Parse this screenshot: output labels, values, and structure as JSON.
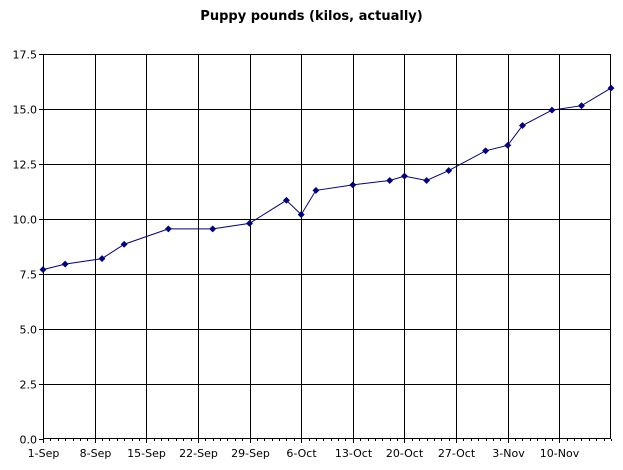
{
  "chart_data": {
    "type": "line",
    "title": "Puppy pounds (kilos, actually)",
    "xlabel": "",
    "ylabel": "",
    "x_tick_labels": [
      "1-Sep",
      "8-Sep",
      "15-Sep",
      "22-Sep",
      "29-Sep",
      "6-Oct",
      "13-Oct",
      "20-Oct",
      "27-Oct",
      "3-Nov",
      "10-Nov"
    ],
    "y_tick_labels": [
      "0.0",
      "2.5",
      "5.0",
      "7.5",
      "10.0",
      "12.5",
      "15.0",
      "17.5"
    ],
    "ylim": [
      0,
      17.5
    ],
    "xlim": [
      "2005-09-01",
      "2005-11-17"
    ],
    "grid": true,
    "legend": "none",
    "series": [
      {
        "color": "#000080",
        "marker": "diamond",
        "points": [
          {
            "x": "2005-09-01",
            "y": 7.7
          },
          {
            "x": "2005-09-04",
            "y": 7.95
          },
          {
            "x": "2005-09-09",
            "y": 8.2
          },
          {
            "x": "2005-09-12",
            "y": 8.85
          },
          {
            "x": "2005-09-18",
            "y": 9.55
          },
          {
            "x": "2005-09-24",
            "y": 9.55
          },
          {
            "x": "2005-09-29",
            "y": 9.8
          },
          {
            "x": "2005-10-04",
            "y": 10.85
          },
          {
            "x": "2005-10-06",
            "y": 10.2
          },
          {
            "x": "2005-10-08",
            "y": 11.3
          },
          {
            "x": "2005-10-13",
            "y": 11.55
          },
          {
            "x": "2005-10-18",
            "y": 11.75
          },
          {
            "x": "2005-10-20",
            "y": 11.95
          },
          {
            "x": "2005-10-23",
            "y": 11.75
          },
          {
            "x": "2005-10-26",
            "y": 12.2
          },
          {
            "x": "2005-10-31",
            "y": 13.1
          },
          {
            "x": "2005-11-03",
            "y": 13.35
          },
          {
            "x": "2005-11-05",
            "y": 14.25
          },
          {
            "x": "2005-11-09",
            "y": 14.95
          },
          {
            "x": "2005-11-13",
            "y": 15.15
          },
          {
            "x": "2005-11-17",
            "y": 15.95
          }
        ]
      }
    ]
  }
}
